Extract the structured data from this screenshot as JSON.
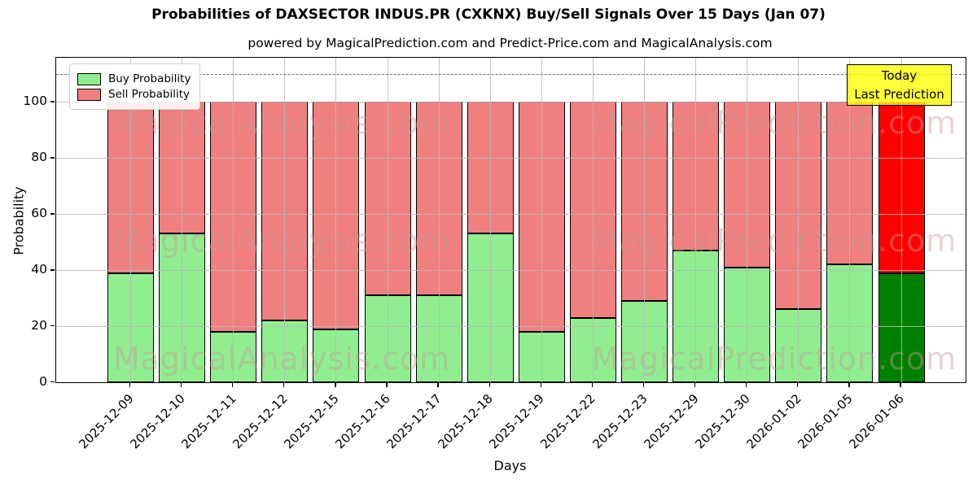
{
  "title": "Probabilities of DAXSECTOR INDUS.PR (CXKNX) Buy/Sell Signals Over 15 Days (Jan 07)",
  "subtitle": "powered by MagicalPrediction.com and Predict-Price.com and MagicalAnalysis.com",
  "annotation": {
    "line1": "Today",
    "line2": "Last Prediction",
    "bg_color": "#ffff00"
  },
  "watermarks": [
    "MagicalAnalysis.com",
    "MagicalPrediction.com"
  ],
  "chart_data": {
    "type": "bar",
    "stacked": true,
    "title": "Probabilities of DAXSECTOR INDUS.PR (CXKNX) Buy/Sell Signals Over 15 Days (Jan 07)",
    "xlabel": "Days",
    "ylabel": "Probability",
    "categories": [
      "2025-12-09",
      "2025-12-10",
      "2025-12-11",
      "2025-12-12",
      "2025-12-15",
      "2025-12-16",
      "2025-12-17",
      "2025-12-18",
      "2025-12-19",
      "2025-12-22",
      "2025-12-23",
      "2025-12-29",
      "2025-12-30",
      "2026-01-02",
      "2026-01-05",
      "2026-01-06"
    ],
    "series": [
      {
        "name": "Buy Probability",
        "color": "#90ee90",
        "values": [
          39,
          53,
          18,
          22,
          19,
          31,
          31,
          53,
          18,
          23,
          29,
          47,
          41,
          26,
          42,
          39
        ]
      },
      {
        "name": "Sell Probability",
        "color": "#f08080",
        "values": [
          61,
          47,
          82,
          78,
          81,
          69,
          69,
          47,
          82,
          77,
          71,
          53,
          59,
          74,
          58,
          61
        ]
      }
    ],
    "today_category": "2026-01-06",
    "today_colors": {
      "buy": "#008000",
      "sell": "#ff0000"
    },
    "yticks": [
      0,
      20,
      40,
      60,
      80,
      100
    ],
    "ylim": [
      0,
      115.8
    ],
    "dashed_line_y": 110,
    "grid": true,
    "legend_position": "upper left",
    "bar_edge_color": "#000000"
  }
}
